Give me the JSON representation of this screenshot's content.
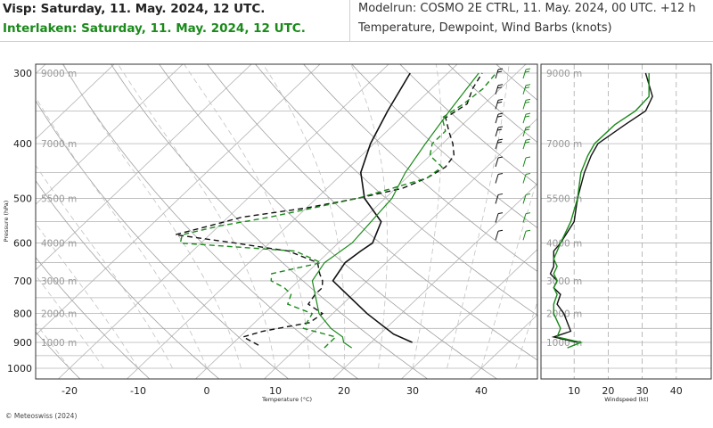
{
  "header": {
    "station1": "Visp: Saturday, 11. May. 2024, 12 UTC.",
    "station2": "Interlaken: Saturday, 11. May. 2024, 12 UTC.",
    "model_run": "Modelrun: COSMO 2E CTRL, 11. May. 2024, 00 UTC. +12 h",
    "variables": "Temperature, Dewpoint, Wind Barbs (knots)"
  },
  "footer": {
    "copyright": "© Meteoswiss (2024)"
  },
  "colors": {
    "station1": "#111111",
    "station2": "#1a8a1a",
    "grid": "#aaaaaa",
    "height_label": "#999999"
  },
  "chart_data": [
    {
      "type": "line",
      "xlabel": "Temperature (°C)",
      "ylabel": "Pressure (hPa)",
      "xlim": [
        -25,
        45
      ],
      "ylim": [
        1050,
        290
      ],
      "yscale": "log",
      "x_ticks": [
        "-20",
        "-10",
        "0",
        "10",
        "20",
        "30",
        "40"
      ],
      "y_ticks": [
        "300",
        "400",
        "500",
        "600",
        "700",
        "800",
        "900",
        "1000"
      ],
      "height_labels": [
        {
          "p": 300,
          "label": "9000 m"
        },
        {
          "p": 400,
          "label": "7000 m"
        },
        {
          "p": 500,
          "label": "5500 m"
        },
        {
          "p": 600,
          "label": "4000 m"
        },
        {
          "p": 700,
          "label": "3000 m"
        },
        {
          "p": 800,
          "label": "2000 m"
        },
        {
          "p": 900,
          "label": "1000 m"
        }
      ],
      "series": [
        {
          "name": "Visp",
          "kind": "temperature",
          "p": [
            900,
            870,
            800,
            700,
            650,
            620,
            600,
            550,
            500,
            450,
            400,
            350,
            300
          ],
          "t": [
            26,
            22,
            15,
            5,
            4,
            4.5,
            5,
            3,
            -3,
            -7.5,
            -10.5,
            -13,
            -15.5
          ]
        },
        {
          "name": "Visp",
          "kind": "dewpoint",
          "p": [
            910,
            880,
            860,
            830,
            800,
            770,
            740,
            720,
            700,
            680,
            650,
            620,
            600,
            580,
            560,
            540,
            520,
            500,
            480,
            460,
            440,
            420,
            400,
            380,
            360,
            340,
            320,
            300
          ],
          "t": [
            4,
            0.5,
            2.5,
            8,
            8.5,
            5,
            4.5,
            4.5,
            3.5,
            2,
            0,
            -6,
            -15,
            -25,
            -21.5,
            -18,
            -10,
            -4,
            1,
            3,
            4,
            3.5,
            1.5,
            -1,
            -3.5,
            -2.5,
            -4,
            -5
          ]
        },
        {
          "name": "Interlaken",
          "kind": "temperature",
          "p": [
            920,
            900,
            880,
            850,
            800,
            700,
            650,
            600,
            500,
            450,
            400,
            350,
            300
          ],
          "t": [
            18,
            16,
            15,
            12,
            8,
            2,
            1,
            2,
            1,
            -1,
            -2.5,
            -4,
            -5.5
          ]
        },
        {
          "name": "Interlaken",
          "kind": "dewpoint",
          "p": [
            920,
            900,
            880,
            850,
            800,
            770,
            740,
            720,
            700,
            680,
            650,
            620,
            600,
            580,
            560,
            540,
            520,
            500,
            480,
            460,
            440,
            420,
            400,
            380,
            360,
            340,
            320,
            300
          ],
          "t": [
            14,
            14,
            14,
            8,
            7,
            2,
            1,
            -1,
            -4,
            -5,
            0.5,
            -5,
            -23,
            -24,
            -20,
            -14,
            -9,
            -4,
            -0.5,
            3,
            3.5,
            0,
            -1.5,
            -1.5,
            -4,
            -3,
            -2.5,
            -3
          ]
        }
      ]
    },
    {
      "type": "line",
      "xlabel": "Windspeed (kt)",
      "xlim": [
        0,
        45
      ],
      "x_ticks": [
        "10",
        "20",
        "30",
        "40"
      ],
      "series": [
        {
          "name": "Visp",
          "p": [
            900,
            880,
            860,
            830,
            800,
            770,
            740,
            720,
            700,
            680,
            660,
            640,
            620,
            600,
            550,
            500,
            450,
            420,
            400,
            370,
            350,
            330,
            300
          ],
          "speed": [
            11,
            4,
            9,
            8,
            7,
            5,
            6,
            4,
            5,
            3,
            4,
            4,
            4,
            6,
            10,
            11,
            13,
            15,
            17,
            25,
            31,
            33,
            31
          ]
        },
        {
          "name": "Interlaken",
          "p": [
            920,
            900,
            880,
            850,
            800,
            770,
            740,
            720,
            700,
            680,
            660,
            640,
            620,
            600,
            550,
            500,
            450,
            420,
            400,
            370,
            350,
            330,
            300
          ],
          "speed": [
            8,
            12,
            5,
            6,
            4,
            4,
            5,
            4,
            5,
            4,
            5,
            4,
            5,
            6,
            9,
            11,
            12,
            14,
            16,
            22,
            28,
            32,
            32
          ]
        }
      ]
    }
  ]
}
